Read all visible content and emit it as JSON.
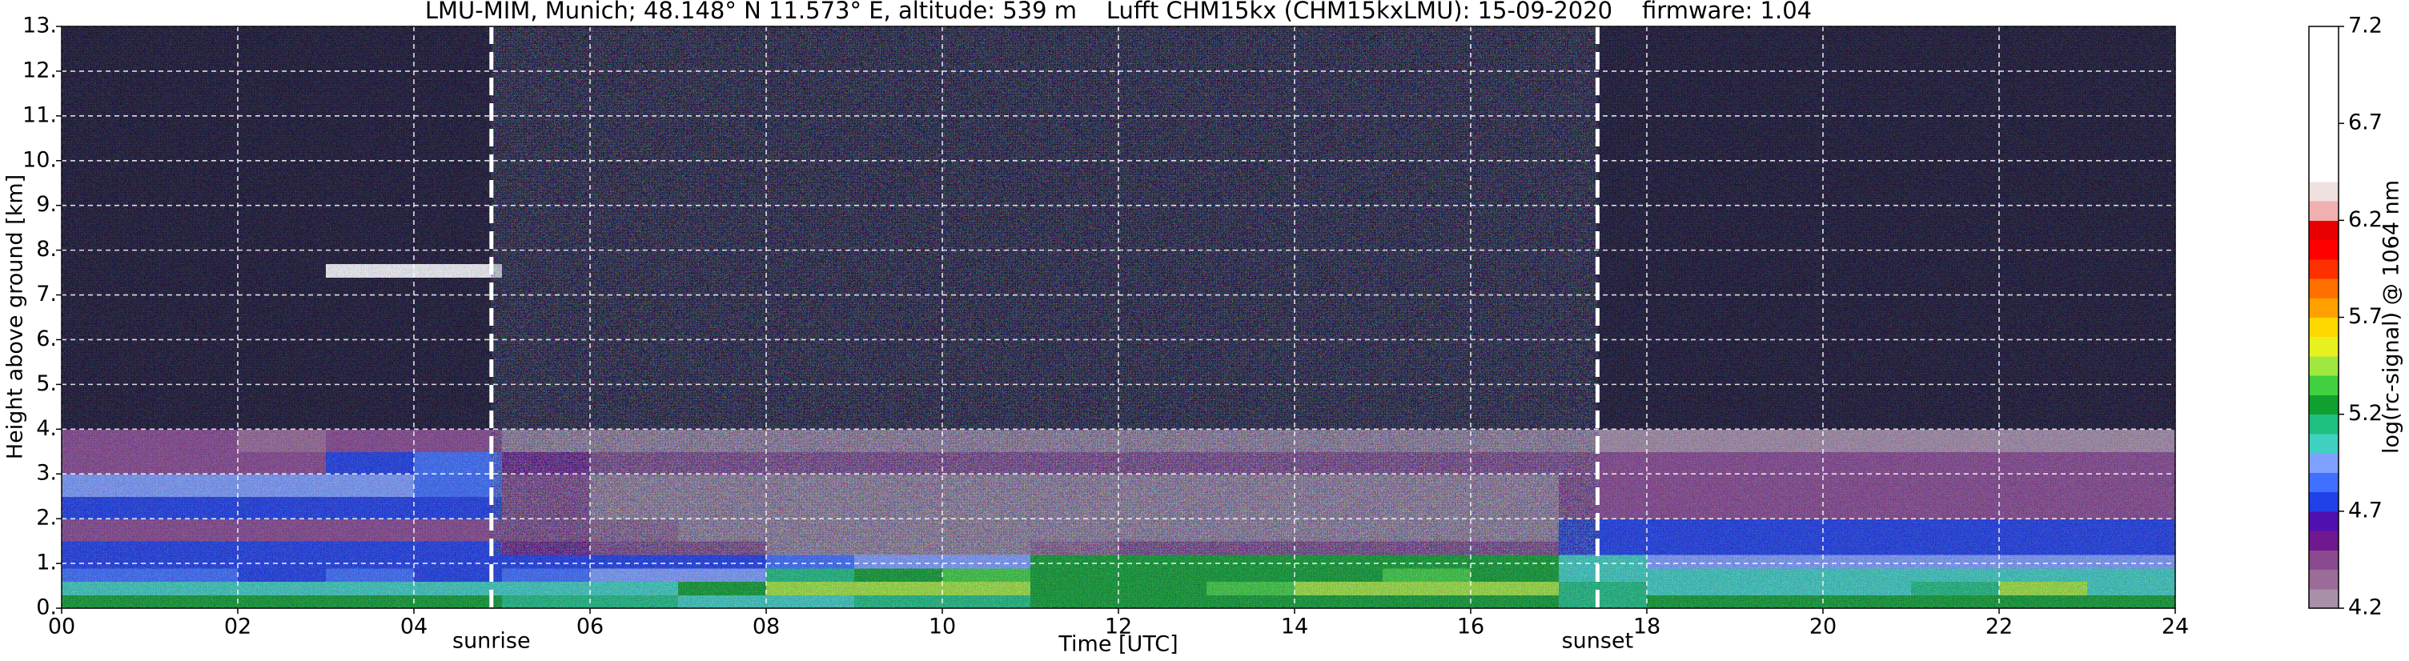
{
  "chart_data": {
    "type": "heatmap",
    "title": "LMU-MIM, Munich; 48.148° N 11.573° E, altitude: 539 m    Lufft CHM15kx (CHM15kxLMU): 15-09-2020    firmware: 1.04",
    "x_label": "Time [UTC]",
    "y_label": "Height above ground [km]",
    "colorbar_label": "log(rc-signal) @ 1064 nm",
    "xlim": [
      0,
      24
    ],
    "ylim": [
      0,
      13
    ],
    "xticks": [
      {
        "value": 0,
        "label": "00"
      },
      {
        "value": 2,
        "label": "02"
      },
      {
        "value": 4,
        "label": "04"
      },
      {
        "value": 6,
        "label": "06"
      },
      {
        "value": 8,
        "label": "08"
      },
      10,
      12,
      14,
      16,
      18,
      20,
      22,
      24
    ],
    "yticks": [
      {
        "value": 0,
        "label": "0."
      },
      {
        "value": 1,
        "label": "1."
      },
      {
        "value": 2,
        "label": "2."
      },
      {
        "value": 3,
        "label": "3."
      },
      {
        "value": 4,
        "label": "4."
      },
      {
        "value": 5,
        "label": "5."
      },
      {
        "value": 6,
        "label": "6."
      },
      {
        "value": 7,
        "label": "7."
      },
      {
        "value": 8,
        "label": "8."
      },
      {
        "value": 9,
        "label": "9."
      },
      {
        "value": 10,
        "label": "10."
      },
      {
        "value": 11,
        "label": "11."
      },
      {
        "value": 12,
        "label": "12."
      },
      {
        "value": 13,
        "label": "13."
      }
    ],
    "grid": true,
    "clim": [
      4.2,
      7.2
    ],
    "cticks": [
      4.2,
      4.7,
      5.2,
      5.7,
      6.2,
      6.7,
      7.2
    ],
    "under_color": "#1a1530",
    "colormap": [
      "#a890a8",
      "#9c6c98",
      "#8a4a90",
      "#701890",
      "#5010b0",
      "#2040e8",
      "#4070ff",
      "#80a0ff",
      "#40d0c0",
      "#20c080",
      "#10a030",
      "#40d040",
      "#a0e840",
      "#e8f020",
      "#ffd800",
      "#ffa000",
      "#ff7000",
      "#ff3000",
      "#ff0000",
      "#e80000",
      "#f0b0b0",
      "#f0e0e0",
      "#ffffff",
      "#ffffff",
      "#ffffff",
      "#ffffff",
      "#ffffff",
      "#ffffff",
      "#ffffff",
      "#ffffff"
    ],
    "annotations": [
      {
        "text": "sunrise",
        "x": 4.88
      },
      {
        "text": "sunset",
        "x": 17.44
      }
    ],
    "x": [
      0,
      1,
      2,
      3,
      4,
      5,
      6,
      7,
      8,
      9,
      10,
      11,
      12,
      13,
      14,
      15,
      16,
      17,
      18,
      19,
      20,
      21,
      22,
      23,
      24
    ],
    "y": [
      0,
      0.3,
      0.6,
      0.9,
      1.2,
      1.5,
      2,
      2.5,
      3,
      3.5,
      4,
      5,
      6,
      7,
      7.4,
      7.7,
      8,
      9,
      10,
      11,
      12,
      13
    ],
    "z": [
      [
        5.2,
        5.2,
        5.2,
        5.2,
        5.2,
        5.15,
        5.15,
        5.1,
        5.1,
        5.15,
        5.15,
        5.2,
        5.2,
        5.2,
        5.2,
        5.2,
        5.2,
        5.15,
        5.2,
        5.2,
        5.2,
        5.2,
        5.2,
        5.2
      ],
      [
        5.05,
        5.05,
        5.05,
        5.05,
        5.05,
        5.05,
        5.1,
        5.2,
        5.45,
        5.5,
        5.45,
        5.3,
        5.3,
        5.35,
        5.4,
        5.45,
        5.4,
        5.15,
        5.1,
        5.1,
        5.1,
        5.15,
        5.45,
        5.1
      ],
      [
        4.85,
        4.85,
        4.8,
        4.85,
        4.8,
        4.85,
        4.9,
        5.0,
        5.15,
        5.3,
        5.35,
        5.25,
        5.25,
        5.3,
        5.3,
        5.35,
        5.3,
        5.1,
        5.05,
        5.05,
        5.05,
        5.05,
        5.1,
        5.05
      ],
      [
        4.75,
        4.7,
        4.7,
        4.7,
        4.7,
        4.7,
        4.75,
        4.8,
        4.85,
        4.9,
        4.95,
        5.2,
        5.2,
        5.25,
        5.3,
        5.25,
        5.25,
        5.05,
        5.0,
        5.0,
        5.0,
        5.0,
        5.0,
        5.0
      ],
      [
        4.7,
        4.7,
        4.7,
        4.7,
        4.7,
        4.6,
        4.5,
        4.4,
        4.3,
        4.3,
        4.3,
        4.35,
        4.4,
        4.4,
        4.4,
        4.4,
        4.4,
        4.7,
        4.75,
        4.7,
        4.7,
        4.7,
        4.75,
        4.75
      ],
      [
        4.5,
        4.5,
        4.5,
        4.5,
        4.5,
        4.4,
        4.35,
        4.3,
        4.25,
        4.25,
        4.25,
        4.25,
        4.25,
        4.25,
        4.25,
        4.25,
        4.25,
        4.8,
        4.8,
        4.75,
        4.75,
        4.8,
        4.8,
        4.8
      ],
      [
        4.8,
        4.8,
        4.8,
        4.75,
        4.75,
        4.4,
        4.3,
        4.25,
        4.25,
        4.25,
        4.25,
        4.25,
        4.25,
        4.25,
        4.25,
        4.25,
        4.25,
        4.5,
        4.5,
        4.5,
        4.5,
        4.5,
        4.5,
        4.5
      ],
      [
        4.95,
        4.95,
        4.9,
        4.9,
        4.85,
        4.4,
        4.3,
        4.25,
        4.25,
        4.25,
        4.25,
        4.25,
        4.25,
        4.25,
        4.25,
        4.25,
        4.25,
        4.4,
        4.4,
        4.4,
        4.45,
        4.4,
        4.4,
        4.4
      ],
      [
        4.45,
        4.45,
        4.45,
        4.8,
        4.85,
        4.6,
        4.5,
        4.45,
        4.45,
        4.45,
        4.45,
        4.45,
        4.45,
        4.45,
        4.45,
        4.45,
        4.5,
        4.45,
        4.4,
        4.4,
        4.45,
        4.4,
        4.4,
        4.4
      ],
      [
        4.4,
        4.4,
        4.35,
        4.45,
        4.45,
        4.25,
        4.2,
        4.2,
        4.2,
        4.2,
        4.2,
        4.2,
        4.2,
        4.2,
        4.2,
        4.2,
        4.2,
        4.3,
        4.3,
        4.3,
        4.3,
        4.3,
        4.3,
        4.3
      ],
      [
        4.0,
        4.0,
        4.0,
        4.0,
        4.0,
        4.0,
        4.0,
        4.0,
        4.0,
        4.0,
        4.0,
        4.0,
        4.0,
        4.0,
        4.0,
        4.0,
        4.0,
        4.0,
        4.0,
        4.0,
        4.0,
        4.0,
        4.0,
        4.0
      ],
      [
        4.0,
        4.0,
        4.0,
        4.0,
        4.0,
        4.0,
        4.0,
        4.0,
        4.0,
        4.0,
        4.0,
        4.0,
        4.0,
        4.0,
        4.0,
        4.0,
        4.0,
        4.0,
        4.0,
        4.0,
        4.0,
        4.0,
        4.0,
        4.0
      ],
      [
        4.0,
        4.0,
        4.0,
        4.0,
        4.0,
        4.0,
        4.0,
        4.0,
        4.0,
        4.0,
        4.0,
        4.0,
        4.0,
        4.0,
        4.0,
        4.0,
        4.0,
        4.0,
        4.0,
        4.0,
        4.0,
        4.0,
        4.0,
        4.0
      ],
      [
        4.0,
        4.0,
        4.0,
        4.0,
        4.0,
        4.0,
        4.0,
        4.0,
        4.0,
        4.0,
        4.0,
        4.0,
        4.0,
        4.0,
        4.0,
        4.0,
        4.0,
        4.0,
        4.0,
        4.0,
        4.0,
        4.0,
        4.0,
        4.0
      ],
      [
        4.0,
        4.0,
        4.0,
        6.8,
        6.8,
        4.0,
        4.0,
        4.0,
        4.0,
        4.0,
        4.0,
        4.0,
        4.0,
        4.0,
        4.0,
        4.0,
        4.0,
        4.0,
        4.0,
        4.0,
        4.0,
        4.0,
        4.0,
        4.0
      ],
      [
        4.0,
        4.0,
        4.0,
        4.0,
        4.0,
        4.0,
        4.0,
        4.0,
        4.0,
        4.0,
        4.0,
        4.0,
        4.0,
        4.0,
        4.0,
        4.0,
        4.0,
        4.0,
        4.0,
        4.0,
        4.0,
        4.0,
        4.0,
        4.0
      ],
      [
        4.0,
        4.0,
        4.0,
        4.0,
        4.0,
        4.0,
        4.0,
        4.0,
        4.0,
        4.0,
        4.0,
        4.0,
        4.0,
        4.0,
        4.0,
        4.0,
        4.0,
        4.0,
        4.0,
        4.0,
        4.0,
        4.0,
        4.0,
        4.0
      ],
      [
        4.0,
        4.0,
        4.0,
        4.0,
        4.0,
        4.0,
        4.0,
        4.0,
        4.0,
        4.0,
        4.0,
        4.0,
        4.0,
        4.0,
        4.0,
        4.0,
        4.0,
        4.0,
        4.0,
        4.0,
        4.0,
        4.0,
        4.0,
        4.0
      ],
      [
        4.0,
        4.0,
        4.0,
        4.0,
        4.0,
        4.0,
        4.0,
        4.0,
        4.0,
        4.0,
        4.0,
        4.0,
        4.0,
        4.0,
        4.0,
        4.0,
        4.0,
        4.0,
        4.0,
        4.0,
        4.0,
        4.0,
        4.0,
        4.0
      ],
      [
        4.0,
        4.0,
        4.0,
        4.0,
        4.0,
        4.0,
        4.0,
        4.0,
        4.0,
        4.0,
        4.0,
        4.0,
        4.0,
        4.0,
        4.0,
        4.0,
        4.0,
        4.0,
        4.0,
        4.0,
        4.0,
        4.0,
        4.0,
        4.0
      ],
      [
        4.0,
        4.0,
        4.0,
        4.0,
        4.0,
        4.0,
        4.0,
        4.0,
        4.0,
        4.0,
        4.0,
        4.0,
        4.0,
        4.0,
        4.0,
        4.0,
        4.0,
        4.0,
        4.0,
        4.0,
        4.0,
        4.0,
        4.0,
        4.0
      ]
    ]
  }
}
